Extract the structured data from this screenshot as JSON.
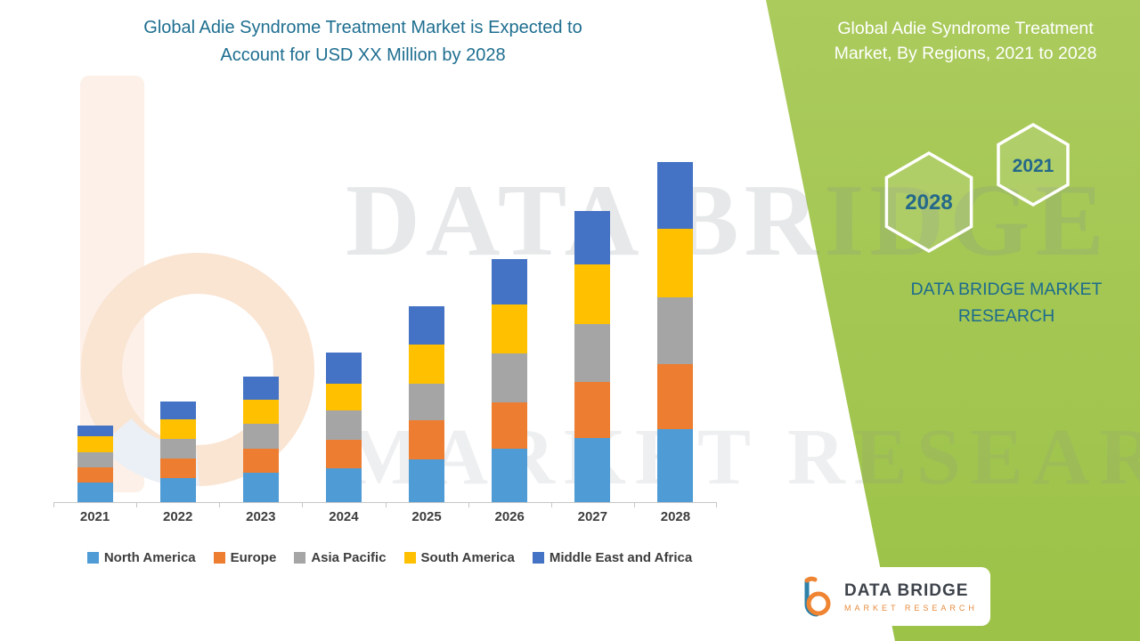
{
  "header": {
    "title_line1": "Global Adie Syndrome Treatment Market is Expected to",
    "title_line2": "Account for USD XX Million by 2028"
  },
  "side_panel": {
    "title_line1": "Global Adie Syndrome Treatment",
    "title_line2": "Market, By Regions,  2021 to 2028",
    "hex_front_label": "2028",
    "hex_back_label": "2021",
    "brand_line1": "DATA BRIDGE MARKET",
    "brand_line2": "RESEARCH"
  },
  "watermark": {
    "line1": "DATA BRIDGE",
    "line2": "MARKET RESEARCH"
  },
  "logo_box": {
    "name": "DATA BRIDGE",
    "subtitle": "MARKET RESEARCH"
  },
  "chart_data": {
    "type": "bar",
    "stacked": true,
    "title": "Global Adie Syndrome Treatment Market, By Regions, 2021 to 2028",
    "categories": [
      "2021",
      "2022",
      "2023",
      "2024",
      "2025",
      "2026",
      "2027",
      "2028"
    ],
    "series": [
      {
        "name": "North America",
        "color": "#4f9bd5",
        "values": [
          22,
          27,
          33,
          38,
          48,
          60,
          72,
          82
        ]
      },
      {
        "name": "Europe",
        "color": "#ed7d31",
        "values": [
          17,
          22,
          27,
          32,
          44,
          52,
          63,
          73
        ]
      },
      {
        "name": "Asia Pacific",
        "color": "#a5a5a5",
        "values": [
          17,
          22,
          28,
          33,
          41,
          55,
          65,
          75
        ]
      },
      {
        "name": "South America",
        "color": "#ffc000",
        "values": [
          18,
          22,
          27,
          30,
          44,
          55,
          67,
          77
        ]
      },
      {
        "name": "Middle East and Africa",
        "color": "#4472c4",
        "values": [
          12,
          20,
          26,
          35,
          43,
          51,
          60,
          75
        ]
      }
    ],
    "totals": [
      86,
      113,
      141,
      168,
      220,
      273,
      327,
      382
    ],
    "xlabel": "",
    "ylabel": "",
    "y_axis_visible": false,
    "ylim": [
      0,
      400
    ],
    "units": "relative units estimated from bar heights (actual values shown as USD XX Million)",
    "legend_position": "bottom",
    "grid": false
  }
}
